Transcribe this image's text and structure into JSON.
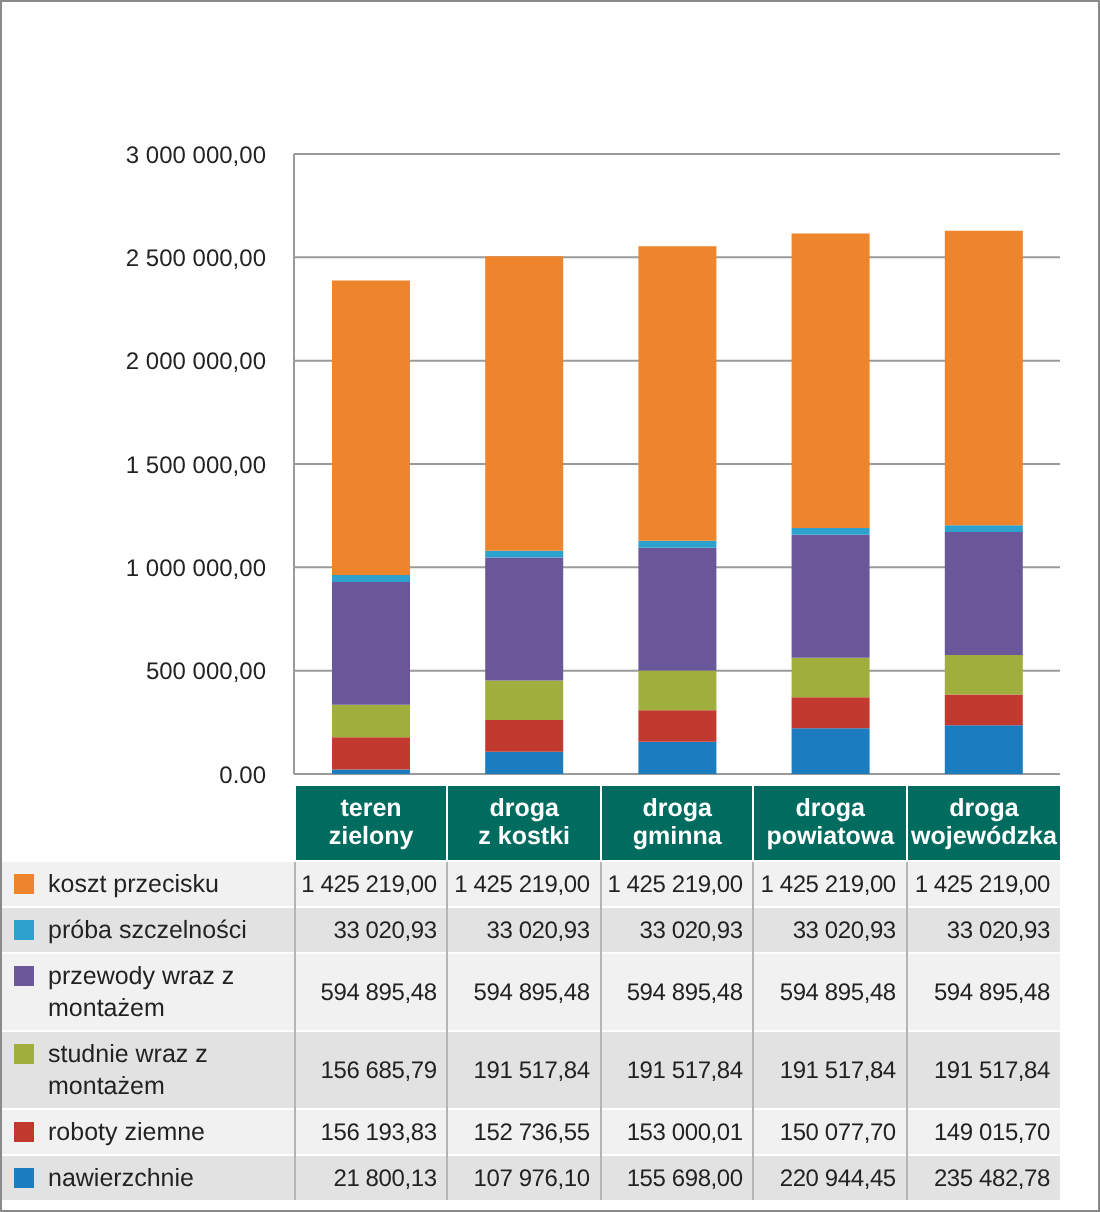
{
  "chart_data": {
    "type": "bar",
    "stacked": true,
    "categories": [
      "teren zielony",
      "droga z kostki",
      "droga gminna",
      "droga powiatowa",
      "droga wojewódzka"
    ],
    "series": [
      {
        "name": "nawierzchnie",
        "color": "#1b7dc0",
        "values": [
          21800.13,
          107976.1,
          155698.0,
          220944.45,
          235482.78
        ],
        "value_labels": [
          "21 800,13",
          "107 976,10",
          "155 698,00",
          "220 944,45",
          "235 482,78"
        ]
      },
      {
        "name": "roboty ziemne",
        "color": "#c2392f",
        "values": [
          156193.83,
          152736.55,
          153000.01,
          150077.7,
          149015.7
        ],
        "value_labels": [
          "156 193,83",
          "152 736,55",
          "153 000,01",
          "150 077,70",
          "149 015,70"
        ]
      },
      {
        "name": "studnie wraz z montażem",
        "color": "#9fae3c",
        "values": [
          156685.79,
          191517.84,
          191517.84,
          191517.84,
          191517.84
        ],
        "value_labels": [
          "156 685,79",
          "191 517,84",
          "191 517,84",
          "191 517,84",
          "191 517,84"
        ]
      },
      {
        "name": "przewody wraz z montażem",
        "color": "#6a5799",
        "values": [
          594895.48,
          594895.48,
          594895.48,
          594895.48,
          594895.48
        ],
        "value_labels": [
          "594 895,48",
          "594 895,48",
          "594 895,48",
          "594 895,48",
          "594 895,48"
        ]
      },
      {
        "name": "próba szczelności",
        "color": "#2ea2cf",
        "values": [
          33020.93,
          33020.93,
          33020.93,
          33020.93,
          33020.93
        ],
        "value_labels": [
          "33 020,93",
          "33 020,93",
          "33 020,93",
          "33 020,93",
          "33 020,93"
        ]
      },
      {
        "name": "koszt przecisku",
        "color": "#ee842b",
        "values": [
          1425219.0,
          1425219.0,
          1425219.0,
          1425219.0,
          1425219.0
        ],
        "value_labels": [
          "1 425 219,00",
          "1 425 219,00",
          "1 425 219,00",
          "1 425 219,00",
          "1 425 219,00"
        ]
      }
    ],
    "ylim": [
      0,
      3000000
    ],
    "yticks": [
      {
        "value": 0,
        "label": "0.00"
      },
      {
        "value": 500000,
        "label": "500 000,00"
      },
      {
        "value": 1000000,
        "label": "1 000 000,00"
      },
      {
        "value": 1500000,
        "label": "1 500 000,00"
      },
      {
        "value": 2000000,
        "label": "2 000 000,00"
      },
      {
        "value": 2500000,
        "label": "2 500 000,00"
      },
      {
        "value": 3000000,
        "label": "3 000 000,00"
      }
    ],
    "grid": "y",
    "legend": "bottom"
  }
}
